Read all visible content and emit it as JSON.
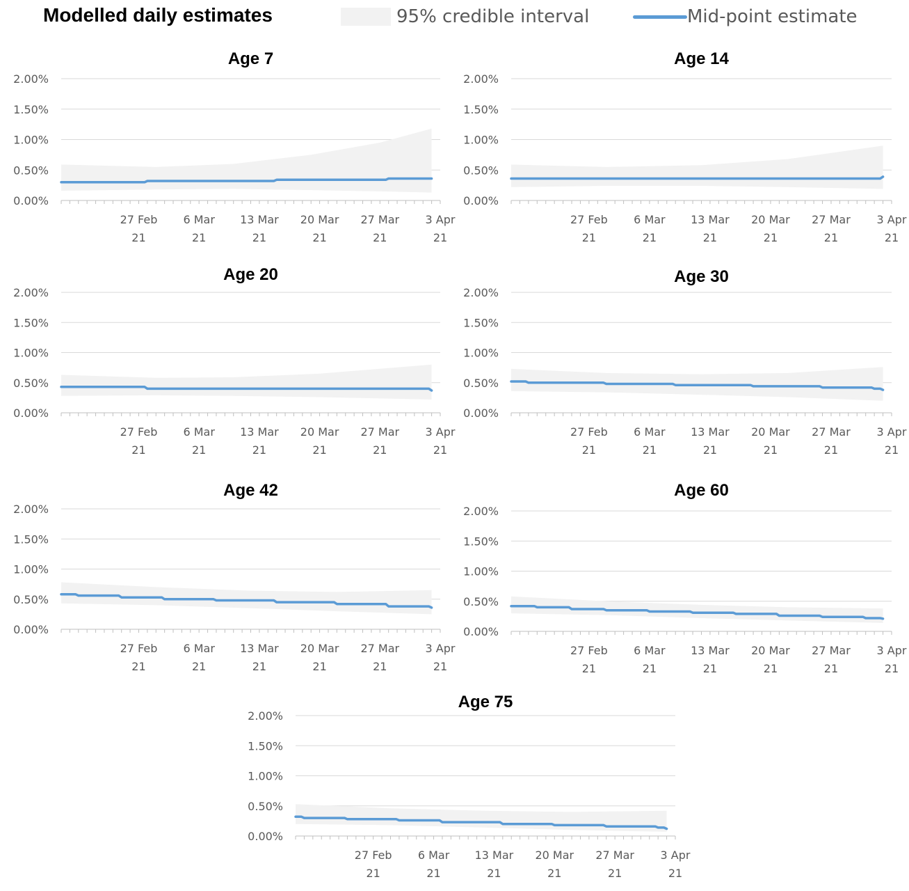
{
  "header": {
    "title": "Modelled daily estimates",
    "legend_ci_label": "95% credible interval",
    "legend_mid_label": "Mid-point estimate"
  },
  "colors": {
    "band": "#f2f2f2",
    "line": "#5b9bd5",
    "grid": "#d9d9d9",
    "axis": "#bfbfbf"
  },
  "chart_data": [
    {
      "type": "area",
      "title": "Age 7",
      "x_tick_labels": [
        [
          "27 Feb",
          "21"
        ],
        [
          "6 Mar",
          "21"
        ],
        [
          "13 Mar",
          "21"
        ],
        [
          "20 Mar",
          "21"
        ],
        [
          "27 Mar",
          "21"
        ],
        [
          "3 Apr",
          "21"
        ]
      ],
      "y_tick_labels": [
        "0.00%",
        "2.00%",
        "1.50%",
        "1.00%",
        "0.50%"
      ],
      "ylim": [
        0,
        2
      ],
      "xlim": [
        "2021-02-18",
        "2021-04-03"
      ],
      "grid": true,
      "series": [
        {
          "x": [
            "2021-02-18",
            "2021-02-28",
            "2021-03-08",
            "2021-03-15",
            "2021-03-22",
            "2021-03-28",
            "2021-04-02"
          ],
          "values": [
            0.3,
            0.32,
            0.32,
            0.34,
            0.34,
            0.36,
            0.36
          ]
        }
      ],
      "band": {
        "x": [
          "2021-02-18",
          "2021-03-01",
          "2021-03-10",
          "2021-03-19",
          "2021-03-27",
          "2021-04-02"
        ],
        "upper": [
          0.59,
          0.55,
          0.6,
          0.75,
          0.95,
          1.18
        ],
        "lower": [
          0.16,
          0.18,
          0.19,
          0.17,
          0.15,
          0.13
        ]
      }
    },
    {
      "type": "area",
      "title": "Age 14",
      "x_tick_labels": [
        [
          "27 Feb",
          "21"
        ],
        [
          "6 Mar",
          "21"
        ],
        [
          "13 Mar",
          "21"
        ],
        [
          "20 Mar",
          "21"
        ],
        [
          "27 Mar",
          "21"
        ],
        [
          "3 Apr",
          "21"
        ]
      ],
      "y_tick_labels": [
        "0.00%",
        "2.00%",
        "1.50%",
        "1.00%",
        "0.50%"
      ],
      "ylim": [
        0,
        2
      ],
      "xlim": [
        "2021-02-18",
        "2021-04-03"
      ],
      "grid": true,
      "series": [
        {
          "x": [
            "2021-02-18",
            "2021-03-29",
            "2021-04-02"
          ],
          "values": [
            0.36,
            0.36,
            0.39
          ]
        }
      ],
      "band": {
        "x": [
          "2021-02-18",
          "2021-03-01",
          "2021-03-12",
          "2021-03-22",
          "2021-04-02"
        ],
        "upper": [
          0.59,
          0.55,
          0.58,
          0.68,
          0.9
        ],
        "lower": [
          0.22,
          0.24,
          0.24,
          0.22,
          0.19
        ]
      }
    },
    {
      "type": "area",
      "title": "Age 20",
      "x_tick_labels": [
        [
          "27 Feb",
          "21"
        ],
        [
          "6 Mar",
          "21"
        ],
        [
          "13 Mar",
          "21"
        ],
        [
          "20 Mar",
          "21"
        ],
        [
          "27 Mar",
          "21"
        ],
        [
          "3 Apr",
          "21"
        ]
      ],
      "y_tick_labels": [
        "0.00%",
        "2.00%",
        "1.50%",
        "1.00%",
        "0.50%"
      ],
      "ylim": [
        0,
        2
      ],
      "xlim": [
        "2021-02-18",
        "2021-04-03"
      ],
      "grid": true,
      "series": [
        {
          "x": [
            "2021-02-18",
            "2021-02-27",
            "2021-02-28",
            "2021-04-01",
            "2021-04-02"
          ],
          "values": [
            0.43,
            0.43,
            0.4,
            0.4,
            0.37
          ]
        }
      ],
      "band": {
        "x": [
          "2021-02-18",
          "2021-03-01",
          "2021-03-10",
          "2021-03-20",
          "2021-04-02"
        ],
        "upper": [
          0.63,
          0.58,
          0.59,
          0.65,
          0.8
        ],
        "lower": [
          0.28,
          0.29,
          0.28,
          0.26,
          0.22
        ]
      }
    },
    {
      "type": "area",
      "title": "Age 30",
      "x_tick_labels": [
        [
          "27 Feb",
          "21"
        ],
        [
          "6 Mar",
          "21"
        ],
        [
          "13 Mar",
          "21"
        ],
        [
          "20 Mar",
          "21"
        ],
        [
          "27 Mar",
          "21"
        ],
        [
          "3 Apr",
          "21"
        ]
      ],
      "y_tick_labels": [
        "0.00%",
        "2.00%",
        "1.50%",
        "1.00%",
        "0.50%"
      ],
      "ylim": [
        0,
        2
      ],
      "xlim": [
        "2021-02-18",
        "2021-04-03"
      ],
      "grid": true,
      "series": [
        {
          "x": [
            "2021-02-18",
            "2021-02-20",
            "2021-03-01",
            "2021-03-09",
            "2021-03-18",
            "2021-03-26",
            "2021-04-01",
            "2021-04-02"
          ],
          "values": [
            0.52,
            0.5,
            0.48,
            0.46,
            0.44,
            0.42,
            0.4,
            0.38
          ]
        }
      ],
      "band": {
        "x": [
          "2021-02-18",
          "2021-03-01",
          "2021-03-12",
          "2021-03-22",
          "2021-04-02"
        ],
        "upper": [
          0.73,
          0.66,
          0.64,
          0.66,
          0.76
        ],
        "lower": [
          0.36,
          0.34,
          0.3,
          0.26,
          0.2
        ]
      }
    },
    {
      "type": "area",
      "title": "Age 42",
      "x_tick_labels": [
        [
          "27 Feb",
          "21"
        ],
        [
          "6 Mar",
          "21"
        ],
        [
          "13 Mar",
          "21"
        ],
        [
          "20 Mar",
          "21"
        ],
        [
          "27 Mar",
          "21"
        ],
        [
          "3 Apr",
          "21"
        ]
      ],
      "y_tick_labels": [
        "0.00%",
        "2.00%",
        "1.50%",
        "1.00%",
        "0.50%"
      ],
      "ylim": [
        0,
        2
      ],
      "xlim": [
        "2021-02-18",
        "2021-04-03"
      ],
      "grid": true,
      "series": [
        {
          "x": [
            "2021-02-18",
            "2021-02-20",
            "2021-02-25",
            "2021-03-02",
            "2021-03-08",
            "2021-03-15",
            "2021-03-22",
            "2021-03-28",
            "2021-04-02"
          ],
          "values": [
            0.58,
            0.56,
            0.53,
            0.5,
            0.48,
            0.45,
            0.42,
            0.38,
            0.36
          ]
        }
      ],
      "band": {
        "x": [
          "2021-02-18",
          "2021-03-01",
          "2021-03-12",
          "2021-03-22",
          "2021-04-02"
        ],
        "upper": [
          0.78,
          0.7,
          0.64,
          0.62,
          0.65
        ],
        "lower": [
          0.43,
          0.4,
          0.35,
          0.3,
          0.25
        ]
      }
    },
    {
      "type": "area",
      "title": "Age 60",
      "x_tick_labels": [
        [
          "27 Feb",
          "21"
        ],
        [
          "6 Mar",
          "21"
        ],
        [
          "13 Mar",
          "21"
        ],
        [
          "20 Mar",
          "21"
        ],
        [
          "27 Mar",
          "21"
        ],
        [
          "3 Apr",
          "21"
        ]
      ],
      "y_tick_labels": [
        "0.00%",
        "2.00%",
        "1.50%",
        "1.00%",
        "0.50%"
      ],
      "ylim": [
        0,
        2
      ],
      "xlim": [
        "2021-02-18",
        "2021-04-03"
      ],
      "grid": true,
      "series": [
        {
          "x": [
            "2021-02-18",
            "2021-02-21",
            "2021-02-25",
            "2021-03-01",
            "2021-03-06",
            "2021-03-11",
            "2021-03-16",
            "2021-03-21",
            "2021-03-26",
            "2021-03-31",
            "2021-04-02"
          ],
          "values": [
            0.42,
            0.4,
            0.37,
            0.35,
            0.33,
            0.31,
            0.29,
            0.26,
            0.24,
            0.22,
            0.21
          ]
        }
      ],
      "band": {
        "x": [
          "2021-02-18",
          "2021-03-01",
          "2021-03-12",
          "2021-03-22",
          "2021-04-02"
        ],
        "upper": [
          0.58,
          0.5,
          0.44,
          0.4,
          0.38
        ],
        "lower": [
          0.3,
          0.27,
          0.22,
          0.18,
          0.14
        ]
      }
    },
    {
      "type": "area",
      "title": "Age 75",
      "x_tick_labels": [
        [
          "27 Feb",
          "21"
        ],
        [
          "6 Mar",
          "21"
        ],
        [
          "13 Mar",
          "21"
        ],
        [
          "20 Mar",
          "21"
        ],
        [
          "27 Mar",
          "21"
        ],
        [
          "3 Apr",
          "21"
        ]
      ],
      "y_tick_labels": [
        "0.00%",
        "2.00%",
        "1.50%",
        "1.00%",
        "0.50%"
      ],
      "ylim": [
        0,
        2
      ],
      "xlim": [
        "2021-02-18",
        "2021-04-03"
      ],
      "grid": true,
      "series": [
        {
          "x": [
            "2021-02-18",
            "2021-02-19",
            "2021-02-24",
            "2021-03-02",
            "2021-03-07",
            "2021-03-14",
            "2021-03-20",
            "2021-03-26",
            "2021-04-01",
            "2021-04-02"
          ],
          "values": [
            0.32,
            0.3,
            0.28,
            0.26,
            0.23,
            0.2,
            0.18,
            0.16,
            0.14,
            0.12
          ]
        }
      ],
      "band": {
        "x": [
          "2021-02-18",
          "2021-03-01",
          "2021-03-12",
          "2021-03-22",
          "2021-04-02"
        ],
        "upper": [
          0.53,
          0.46,
          0.42,
          0.4,
          0.42
        ],
        "lower": [
          0.2,
          0.18,
          0.14,
          0.1,
          0.07
        ]
      }
    }
  ]
}
